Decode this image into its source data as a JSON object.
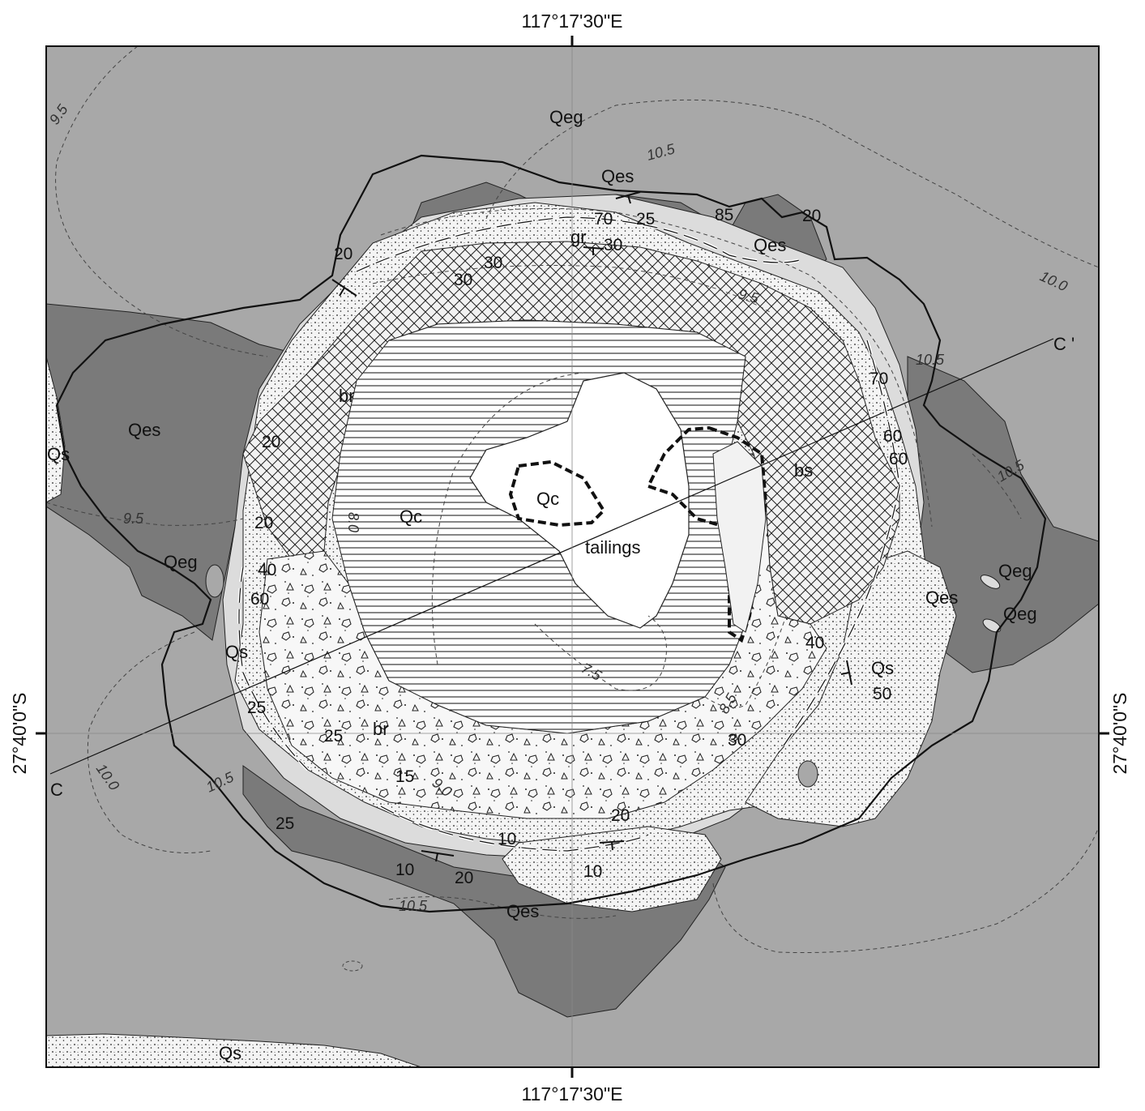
{
  "coordinates": {
    "top": "117°17'30\"E",
    "bottom": "117°17'30\"E",
    "left": "27°40'0\"S",
    "right": "27°40'0\"S"
  },
  "section_line": {
    "start": "C",
    "end": "C '"
  },
  "units": {
    "qeg_top": "Qeg",
    "qeg_left": "Qeg",
    "qeg_right_1": "Qeg",
    "qeg_right_2": "Qeg",
    "qes_top": "Qes",
    "qes_top_right": "Qes",
    "qes_left": "Qes",
    "qes_right": "Qes",
    "qes_bottom": "Qes",
    "qs_left": "Qs",
    "qs_lower_left": "Qs",
    "qs_right": "Qs",
    "qs_bottom": "Qs",
    "qc_center": "Qc",
    "qc_inner": "Qc",
    "tailings": "tailings",
    "gr": "gr",
    "br_upper": "br",
    "br_lower": "br",
    "bs": "bs"
  },
  "dips": {
    "d70_top": "70",
    "d25_top": "25",
    "d30_top": "30",
    "d85": "85",
    "d20_top_right": "20",
    "d20_upper_left": "20",
    "d30_a": "30",
    "d30_b": "30",
    "d70_right": "70",
    "d60_right_a": "60",
    "d60_right_b": "60",
    "d20_left": "20",
    "d20_left_b": "20",
    "d40_left": "40",
    "d60_left": "60",
    "d40_right": "40",
    "d50_right": "50",
    "d25_left": "25",
    "d25_br": "25",
    "d30_lower_right": "30",
    "d15": "15",
    "d20_bottom": "20",
    "d25_bottom_left": "25",
    "d10_a": "10",
    "d10_b": "10",
    "d20_bottom_b": "20",
    "d10_c": "10"
  },
  "contours": {
    "c95_nw": "9.5",
    "c105_top": "10.5",
    "c100_ne": "10.0",
    "c95_inner": "9.5",
    "c105_right": "10.5",
    "c105_right_b": "10.5",
    "c95_left": "9.5",
    "c80": "8.0",
    "c75": "7.5",
    "c85": "8.5",
    "c90": "9.0",
    "c100_sw": "10.0",
    "c105_sw": "10.5",
    "c105_bottom": "10.5"
  },
  "colors": {
    "background": "#a8a8a8",
    "dark_unit": "#7a7a7a",
    "light_unit": "#dcdcdc",
    "stipple_base": "#f4f4f4",
    "white": "#ffffff",
    "line": "#111111"
  }
}
